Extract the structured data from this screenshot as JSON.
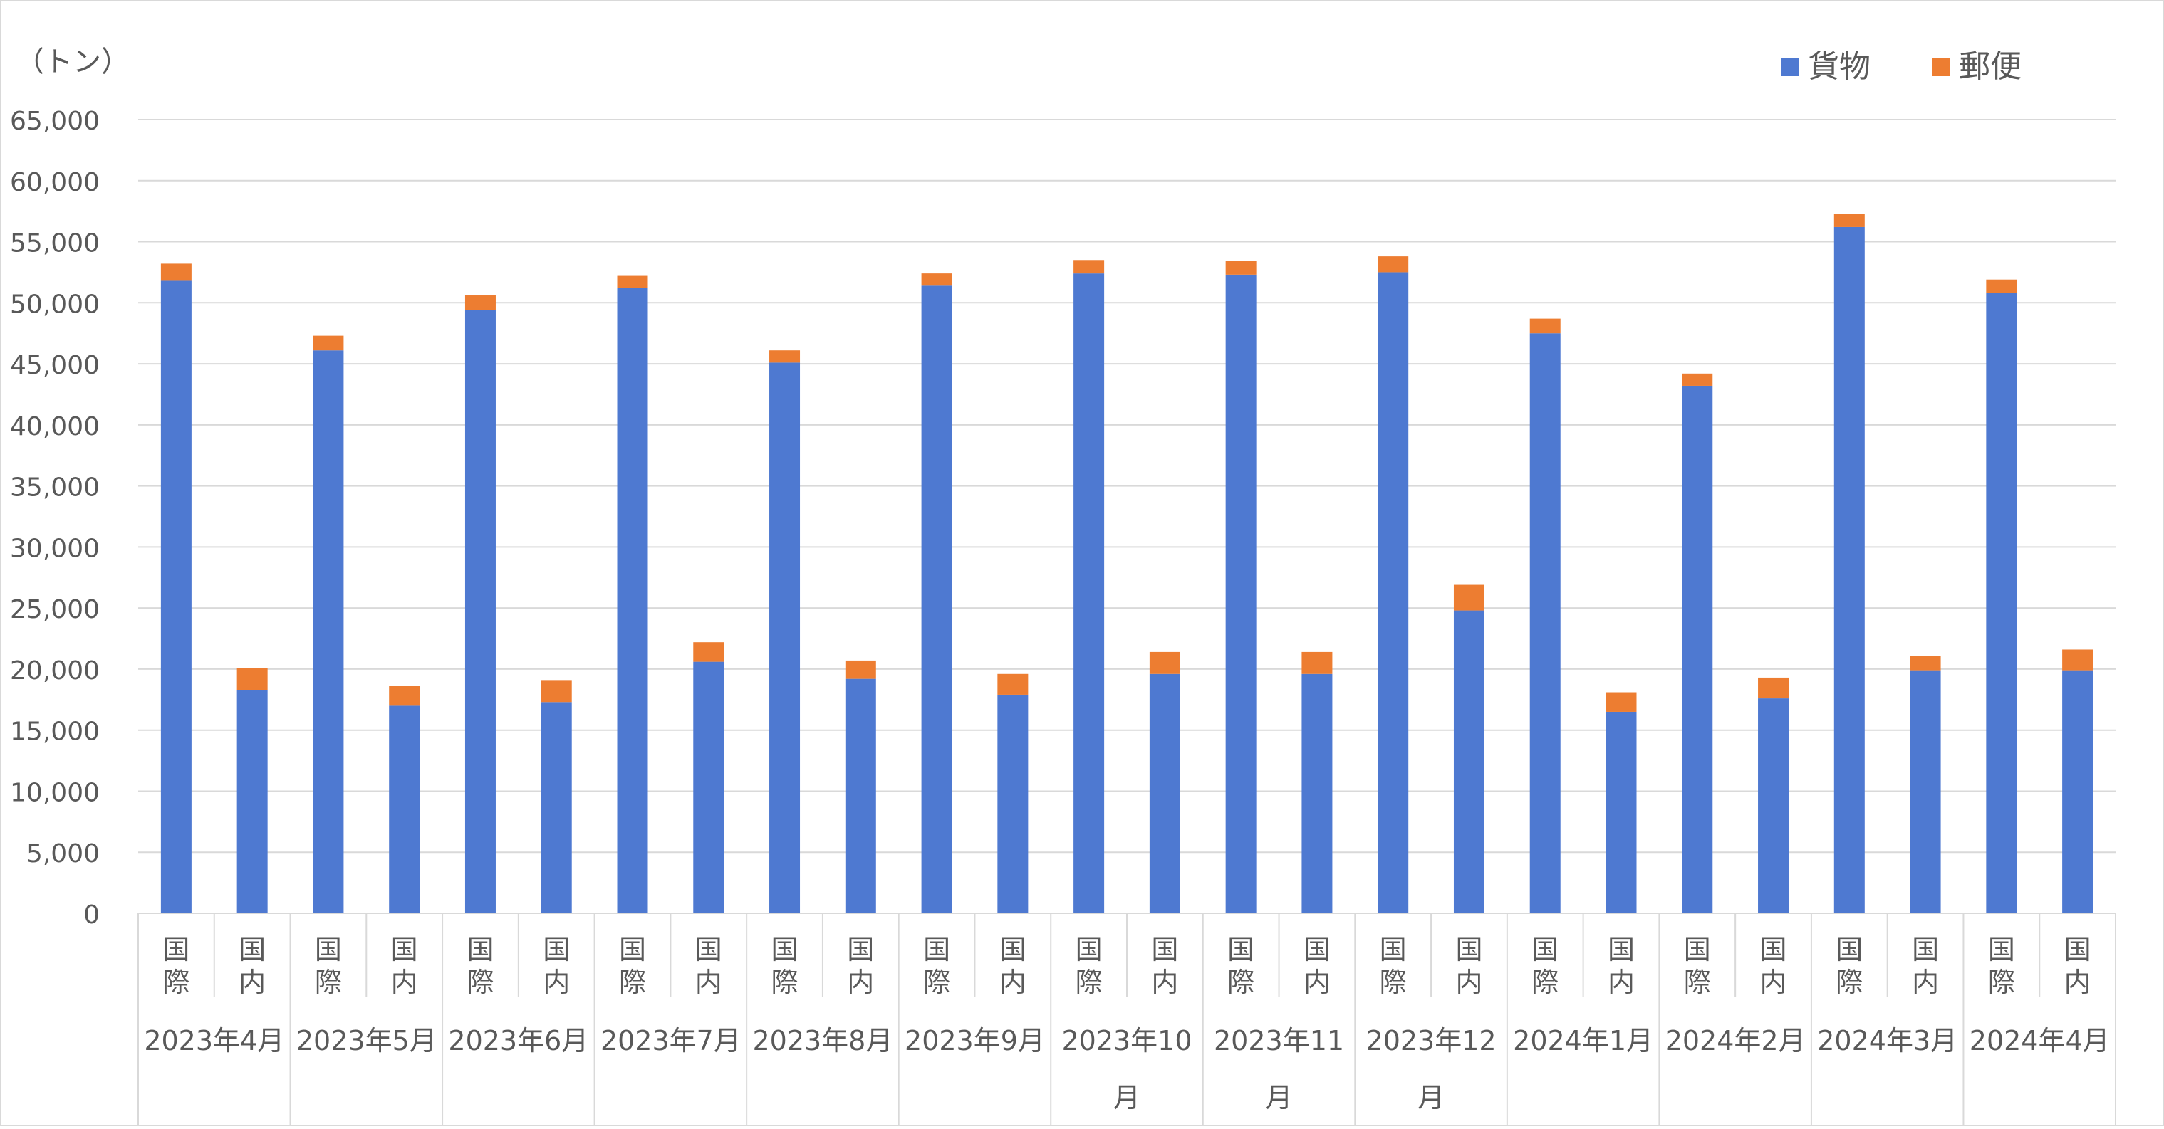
{
  "chart_data": {
    "type": "bar",
    "stacked": true,
    "unit_label": "（トン）",
    "title": "",
    "xlabel": "",
    "ylabel": "",
    "ylim": [
      0,
      65000
    ],
    "y_ticks": [
      0,
      5000,
      10000,
      15000,
      20000,
      25000,
      30000,
      35000,
      40000,
      45000,
      50000,
      55000,
      60000,
      65000
    ],
    "y_tick_labels": [
      "0",
      "5,000",
      "10,000",
      "15,000",
      "20,000",
      "25,000",
      "30,000",
      "35,000",
      "40,000",
      "45,000",
      "50,000",
      "55,000",
      "60,000",
      "65,000"
    ],
    "grid": true,
    "legend_position": "top-right",
    "categories": [
      {
        "group": [
          "2023年4月"
        ],
        "sub": "国際"
      },
      {
        "group": [
          "2023年4月"
        ],
        "sub": "国内"
      },
      {
        "group": [
          "2023年5月"
        ],
        "sub": "国際"
      },
      {
        "group": [
          "2023年5月"
        ],
        "sub": "国内"
      },
      {
        "group": [
          "2023年6月"
        ],
        "sub": "国際"
      },
      {
        "group": [
          "2023年6月"
        ],
        "sub": "国内"
      },
      {
        "group": [
          "2023年7月"
        ],
        "sub": "国際"
      },
      {
        "group": [
          "2023年7月"
        ],
        "sub": "国内"
      },
      {
        "group": [
          "2023年8月"
        ],
        "sub": "国際"
      },
      {
        "group": [
          "2023年8月"
        ],
        "sub": "国内"
      },
      {
        "group": [
          "2023年9月"
        ],
        "sub": "国際"
      },
      {
        "group": [
          "2023年9月"
        ],
        "sub": "国内"
      },
      {
        "group": [
          "2023年10",
          "月"
        ],
        "sub": "国際"
      },
      {
        "group": [
          "2023年10",
          "月"
        ],
        "sub": "国内"
      },
      {
        "group": [
          "2023年11",
          "月"
        ],
        "sub": "国際"
      },
      {
        "group": [
          "2023年11",
          "月"
        ],
        "sub": "国内"
      },
      {
        "group": [
          "2023年12",
          "月"
        ],
        "sub": "国際"
      },
      {
        "group": [
          "2023年12",
          "月"
        ],
        "sub": "国内"
      },
      {
        "group": [
          "2024年1月"
        ],
        "sub": "国際"
      },
      {
        "group": [
          "2024年1月"
        ],
        "sub": "国内"
      },
      {
        "group": [
          "2024年2月"
        ],
        "sub": "国際"
      },
      {
        "group": [
          "2024年2月"
        ],
        "sub": "国内"
      },
      {
        "group": [
          "2024年3月"
        ],
        "sub": "国際"
      },
      {
        "group": [
          "2024年3月"
        ],
        "sub": "国内"
      },
      {
        "group": [
          "2024年4月"
        ],
        "sub": "国際"
      },
      {
        "group": [
          "2024年4月"
        ],
        "sub": "国内"
      }
    ],
    "groups": [
      {
        "lines": [
          "2023年4月"
        ]
      },
      {
        "lines": [
          "2023年5月"
        ]
      },
      {
        "lines": [
          "2023年6月"
        ]
      },
      {
        "lines": [
          "2023年7月"
        ]
      },
      {
        "lines": [
          "2023年8月"
        ]
      },
      {
        "lines": [
          "2023年9月"
        ]
      },
      {
        "lines": [
          "2023年10",
          "月"
        ]
      },
      {
        "lines": [
          "2023年11",
          "月"
        ]
      },
      {
        "lines": [
          "2023年12",
          "月"
        ]
      },
      {
        "lines": [
          "2024年1月"
        ]
      },
      {
        "lines": [
          "2024年2月"
        ]
      },
      {
        "lines": [
          "2024年3月"
        ]
      },
      {
        "lines": [
          "2024年4月"
        ]
      }
    ],
    "sub_labels": [
      "国際",
      "国内"
    ],
    "series": [
      {
        "name": "貨物",
        "color": "#4E79D1",
        "values": [
          51800,
          18300,
          46100,
          17000,
          49400,
          17300,
          51200,
          20600,
          45100,
          19200,
          51400,
          17900,
          52400,
          19600,
          52300,
          19600,
          52500,
          24800,
          47500,
          16500,
          43200,
          17600,
          56200,
          19900,
          50800,
          19900
        ]
      },
      {
        "name": "郵便",
        "color": "#ED7D31",
        "values": [
          1400,
          1800,
          1200,
          1600,
          1200,
          1800,
          1000,
          1600,
          1000,
          1500,
          1000,
          1700,
          1100,
          1800,
          1100,
          1800,
          1300,
          2100,
          1200,
          1600,
          1000,
          1700,
          1100,
          1200,
          1100,
          1700
        ]
      }
    ]
  }
}
